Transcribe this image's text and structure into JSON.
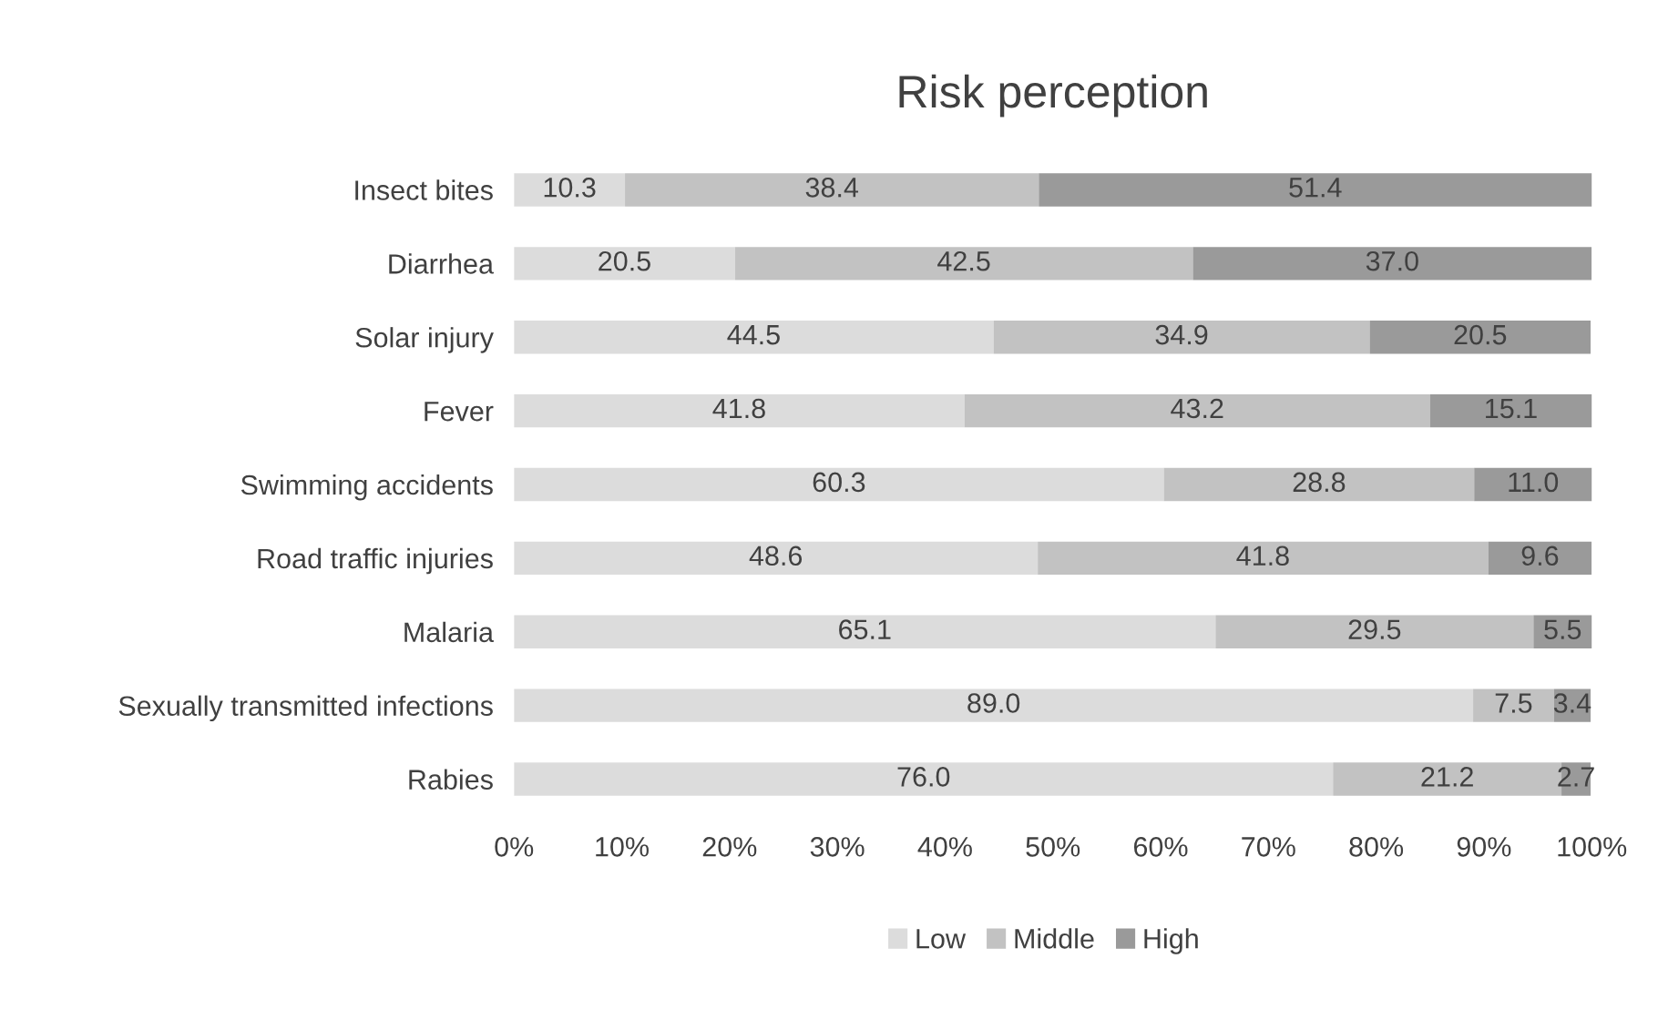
{
  "chart_data": {
    "type": "bar",
    "title": "Risk perception",
    "orientation": "horizontal",
    "stacked": true,
    "categories": [
      "Insect bites",
      "Diarrhea",
      "Solar injury",
      "Fever",
      "Swimming accidents",
      "Road traffic injuries",
      "Malaria",
      "Sexually transmitted infections",
      "Rabies"
    ],
    "series": [
      {
        "name": "Low",
        "color": "#dcdcdc",
        "values": [
          10.3,
          20.5,
          44.5,
          41.8,
          60.3,
          48.6,
          65.1,
          89.0,
          76.0
        ],
        "value_labels": [
          "10.3",
          "20.5",
          "44.5",
          "41.8",
          "60.3",
          "48.6",
          "65.1",
          "89.0",
          "76.0"
        ]
      },
      {
        "name": "Middle",
        "color": "#c2c2c2",
        "values": [
          38.4,
          42.5,
          34.9,
          43.2,
          28.8,
          41.8,
          29.5,
          7.5,
          21.2
        ],
        "value_labels": [
          "38.4",
          "42.5",
          "34.9",
          "43.2",
          "28.8",
          "41.8",
          "29.5",
          "7.5",
          "21.2"
        ]
      },
      {
        "name": "High",
        "color": "#9a9a9a",
        "values": [
          51.4,
          37.0,
          20.5,
          15.1,
          11.0,
          9.6,
          5.5,
          3.4,
          2.7
        ],
        "value_labels": [
          "51.4",
          "37.0",
          "20.5",
          "15.1",
          "11.0",
          "9.6",
          "5.5",
          "3.4",
          "2.7"
        ]
      }
    ],
    "xlim": [
      0,
      100
    ],
    "xticks": [
      {
        "value": 0,
        "label": "0%"
      },
      {
        "value": 10,
        "label": "10%"
      },
      {
        "value": 20,
        "label": "20%"
      },
      {
        "value": 30,
        "label": "30%"
      },
      {
        "value": 40,
        "label": "40%"
      },
      {
        "value": 50,
        "label": "50%"
      },
      {
        "value": 60,
        "label": "60%"
      },
      {
        "value": 70,
        "label": "70%"
      },
      {
        "value": 80,
        "label": "80%"
      },
      {
        "value": 90,
        "label": "90%"
      },
      {
        "value": 100,
        "label": "100%"
      }
    ],
    "legend": "bottom",
    "grid": false
  }
}
